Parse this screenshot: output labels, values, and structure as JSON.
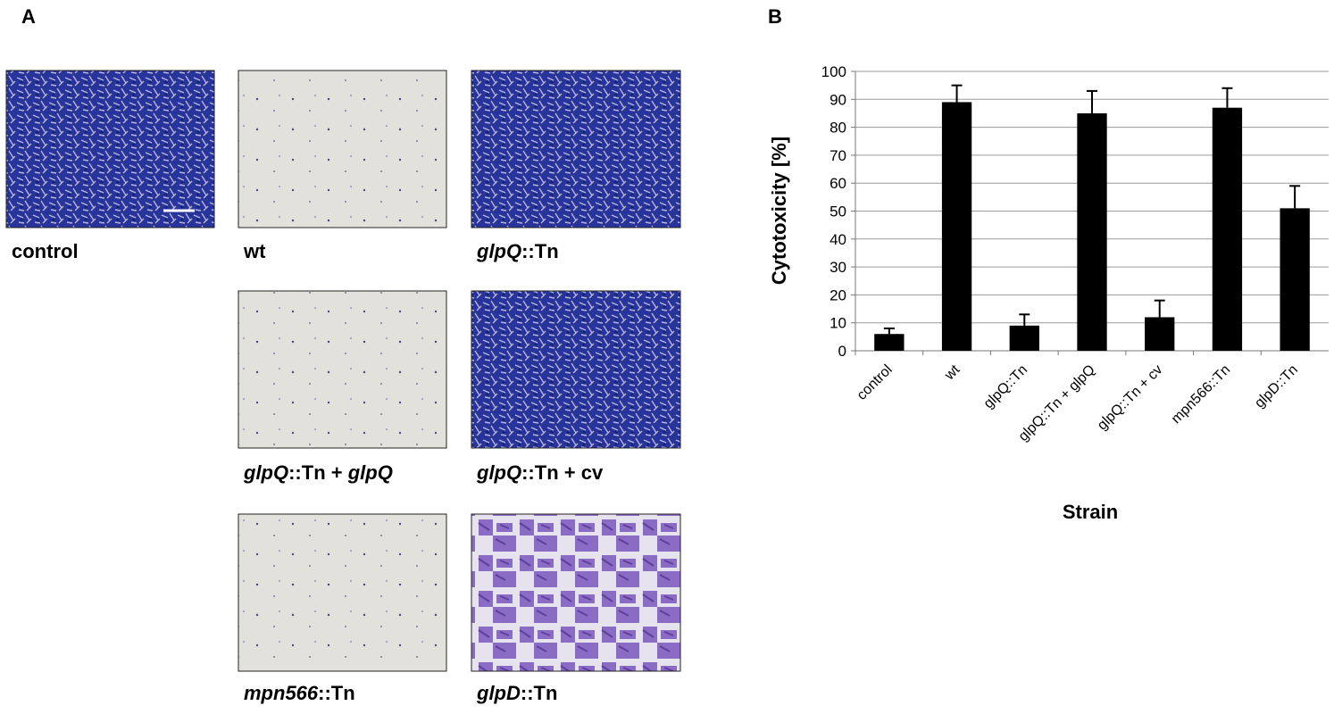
{
  "panel_a": {
    "label": "A",
    "images": [
      {
        "caption": [
          {
            "text": "control",
            "italic": false
          }
        ]
      },
      {
        "caption": [
          {
            "text": "wt",
            "italic": false
          }
        ]
      },
      {
        "caption": [
          {
            "text": "glpQ",
            "italic": true
          },
          {
            "text": "::Tn",
            "italic": false
          }
        ]
      },
      {
        "caption": [
          {
            "text": "glpQ",
            "italic": true
          },
          {
            "text": "::Tn + ",
            "italic": false
          },
          {
            "text": "glpQ",
            "italic": true
          }
        ]
      },
      {
        "caption": [
          {
            "text": "glpQ",
            "italic": true
          },
          {
            "text": "::Tn + cv",
            "italic": false
          }
        ]
      },
      {
        "caption": [
          {
            "text": "mpn566",
            "italic": true
          },
          {
            "text": "::Tn",
            "italic": false
          }
        ]
      },
      {
        "caption": [
          {
            "text": "glpD",
            "italic": true
          },
          {
            "text": "::Tn",
            "italic": false
          }
        ]
      }
    ]
  },
  "chart_data": {
    "type": "bar",
    "panel_label": "B",
    "x_label": "Strain",
    "y_label": "Cytotoxicity [%]",
    "categories": [
      "control",
      "wt",
      "glpQ::Tn",
      "glpQ::Tn + glpQ",
      "glpQ::Tn + cv",
      "mpn566::Tn",
      "glpD::Tn"
    ],
    "values": [
      6,
      89,
      9,
      85,
      12,
      87,
      51
    ],
    "errors": [
      2,
      6,
      4,
      8,
      6,
      7,
      8
    ],
    "color": "#000000",
    "ylim": [
      0,
      100
    ],
    "yticks": [
      0,
      10,
      20,
      30,
      40,
      50,
      60,
      70,
      80,
      90,
      100
    ],
    "grid": true
  }
}
